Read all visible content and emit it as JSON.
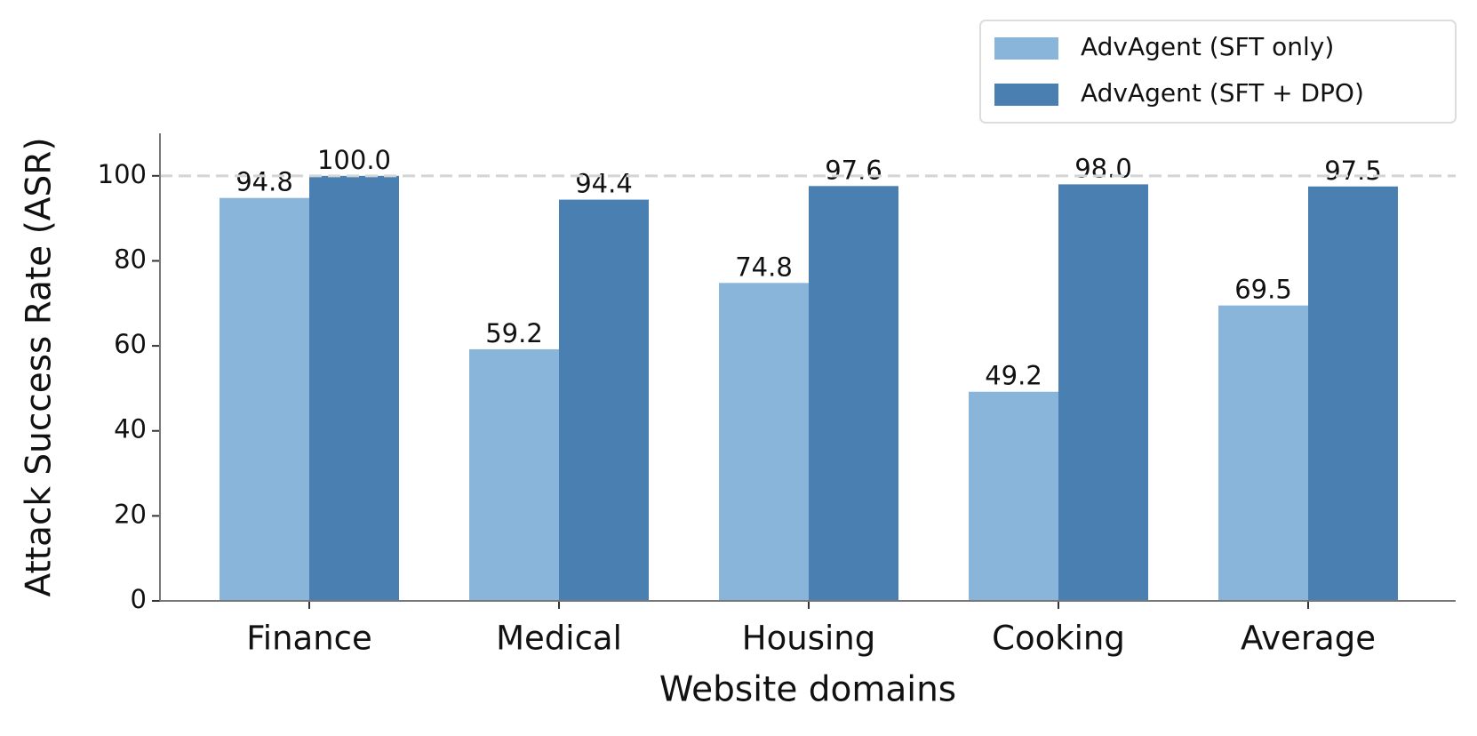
{
  "chart_data": {
    "type": "bar",
    "x_label": "Website domains",
    "y_label": "Attack Success Rate (ASR)",
    "categories": [
      "Finance",
      "Medical",
      "Housing",
      "Cooking",
      "Average"
    ],
    "series": [
      {
        "name": "AdvAgent (SFT only)",
        "color": "#88b5d9",
        "values": [
          94.8,
          59.2,
          74.8,
          49.2,
          69.5
        ],
        "value_labels": [
          "94.8",
          "59.2",
          "74.8",
          "49.2",
          "69.5"
        ]
      },
      {
        "name": "AdvAgent (SFT + DPO)",
        "color": "#4a7fb1",
        "values": [
          100,
          94.4,
          97.6,
          98,
          97.5
        ],
        "value_labels": [
          "100.0",
          "94.4",
          "97.6",
          "98.0",
          "97.5"
        ]
      }
    ],
    "ylim": [
      0,
      110
    ],
    "yticks": [
      0,
      20,
      40,
      60,
      80,
      100
    ],
    "reference_line": 100,
    "legend": "upper right",
    "grid": false
  }
}
